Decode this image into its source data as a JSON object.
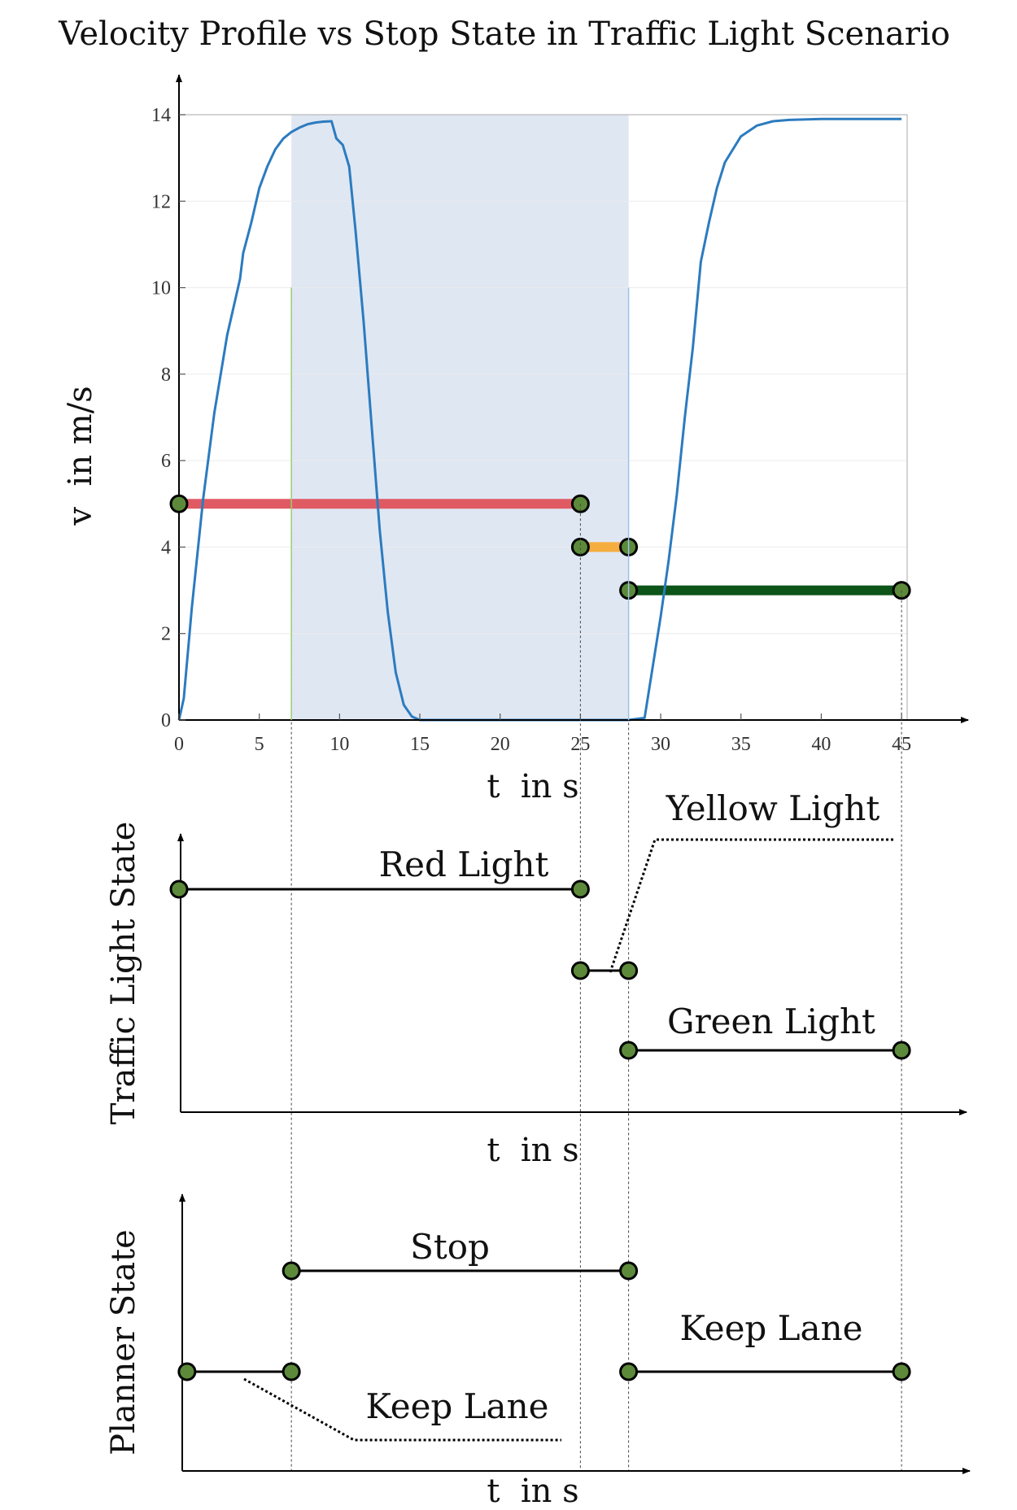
{
  "title": "Velocity Profile vs Stop State in Traffic Light Scenario",
  "chart_data": [
    {
      "type": "line",
      "xlabel": "t  in s",
      "ylabel": "v  in m/s",
      "xlim": [
        0,
        48
      ],
      "ylim": [
        0,
        14
      ],
      "x_ticks": [
        0,
        5,
        10,
        15,
        20,
        25,
        30,
        35,
        40,
        45
      ],
      "y_ticks": [
        0,
        2,
        4,
        6,
        8,
        10,
        12,
        14
      ],
      "grid": true,
      "shaded_interval": {
        "x": [
          7,
          28
        ],
        "color": "#dfe7f3"
      },
      "series": [
        {
          "color": "#2c7bbf",
          "x": [
            0,
            0.3,
            0.8,
            1.5,
            2.2,
            3,
            3.8,
            4,
            4.5,
            5,
            5.5,
            6,
            6.5,
            7,
            7.5,
            8,
            8.5,
            9,
            9.5,
            9.8,
            10.2,
            10.6,
            11,
            11.5,
            12,
            12.5,
            13,
            13.5,
            14,
            14.5,
            15,
            17,
            20,
            25,
            28,
            29,
            30,
            30.5,
            31,
            31.5,
            32,
            32.5,
            33,
            33.5,
            34,
            35,
            36,
            37,
            38,
            40,
            42,
            45
          ],
          "values": [
            0,
            0.5,
            2.6,
            5.1,
            7.1,
            8.9,
            10.2,
            10.8,
            11.5,
            12.3,
            12.8,
            13.2,
            13.45,
            13.6,
            13.7,
            13.78,
            13.82,
            13.84,
            13.85,
            13.45,
            13.3,
            12.8,
            11.3,
            9.2,
            6.8,
            4.4,
            2.5,
            1.1,
            0.35,
            0.08,
            0,
            0,
            0,
            0,
            0,
            0.05,
            2.4,
            3.7,
            5.2,
            7.0,
            8.6,
            10.6,
            11.5,
            12.3,
            12.9,
            13.5,
            13.75,
            13.85,
            13.88,
            13.9,
            13.9,
            13.9
          ]
        }
      ],
      "state_bars": [
        {
          "x": [
            0,
            25
          ],
          "y": 5,
          "color": "#e05a64"
        },
        {
          "x": [
            25,
            28
          ],
          "y": 4,
          "color": "#f5ad3f"
        },
        {
          "x": [
            28,
            45
          ],
          "y": 3,
          "color": "#0c5418"
        }
      ]
    },
    {
      "type": "line",
      "xlabel": "t  in s",
      "ylabel": "Traffic Light State",
      "xlim": [
        0,
        48
      ],
      "series": [
        {
          "label": "Red Light",
          "x": [
            0,
            25
          ],
          "level": 3
        },
        {
          "label": "Yellow Light",
          "x": [
            25,
            28
          ],
          "level": 2
        },
        {
          "label": "Green Light",
          "x": [
            28,
            45
          ],
          "level": 1
        }
      ]
    },
    {
      "type": "line",
      "xlabel": "t  in s",
      "ylabel": "Planner State",
      "xlim": [
        0,
        48
      ],
      "series": [
        {
          "label": "Keep Lane",
          "x": [
            0.5,
            7
          ],
          "level": 1
        },
        {
          "label": "Stop",
          "x": [
            7,
            28
          ],
          "level": 2
        },
        {
          "label": "Keep Lane",
          "x": [
            28,
            45
          ],
          "level": 1
        }
      ]
    }
  ],
  "marker_color": "#5c8a3a",
  "guide_times": [
    7,
    25,
    28,
    45
  ]
}
